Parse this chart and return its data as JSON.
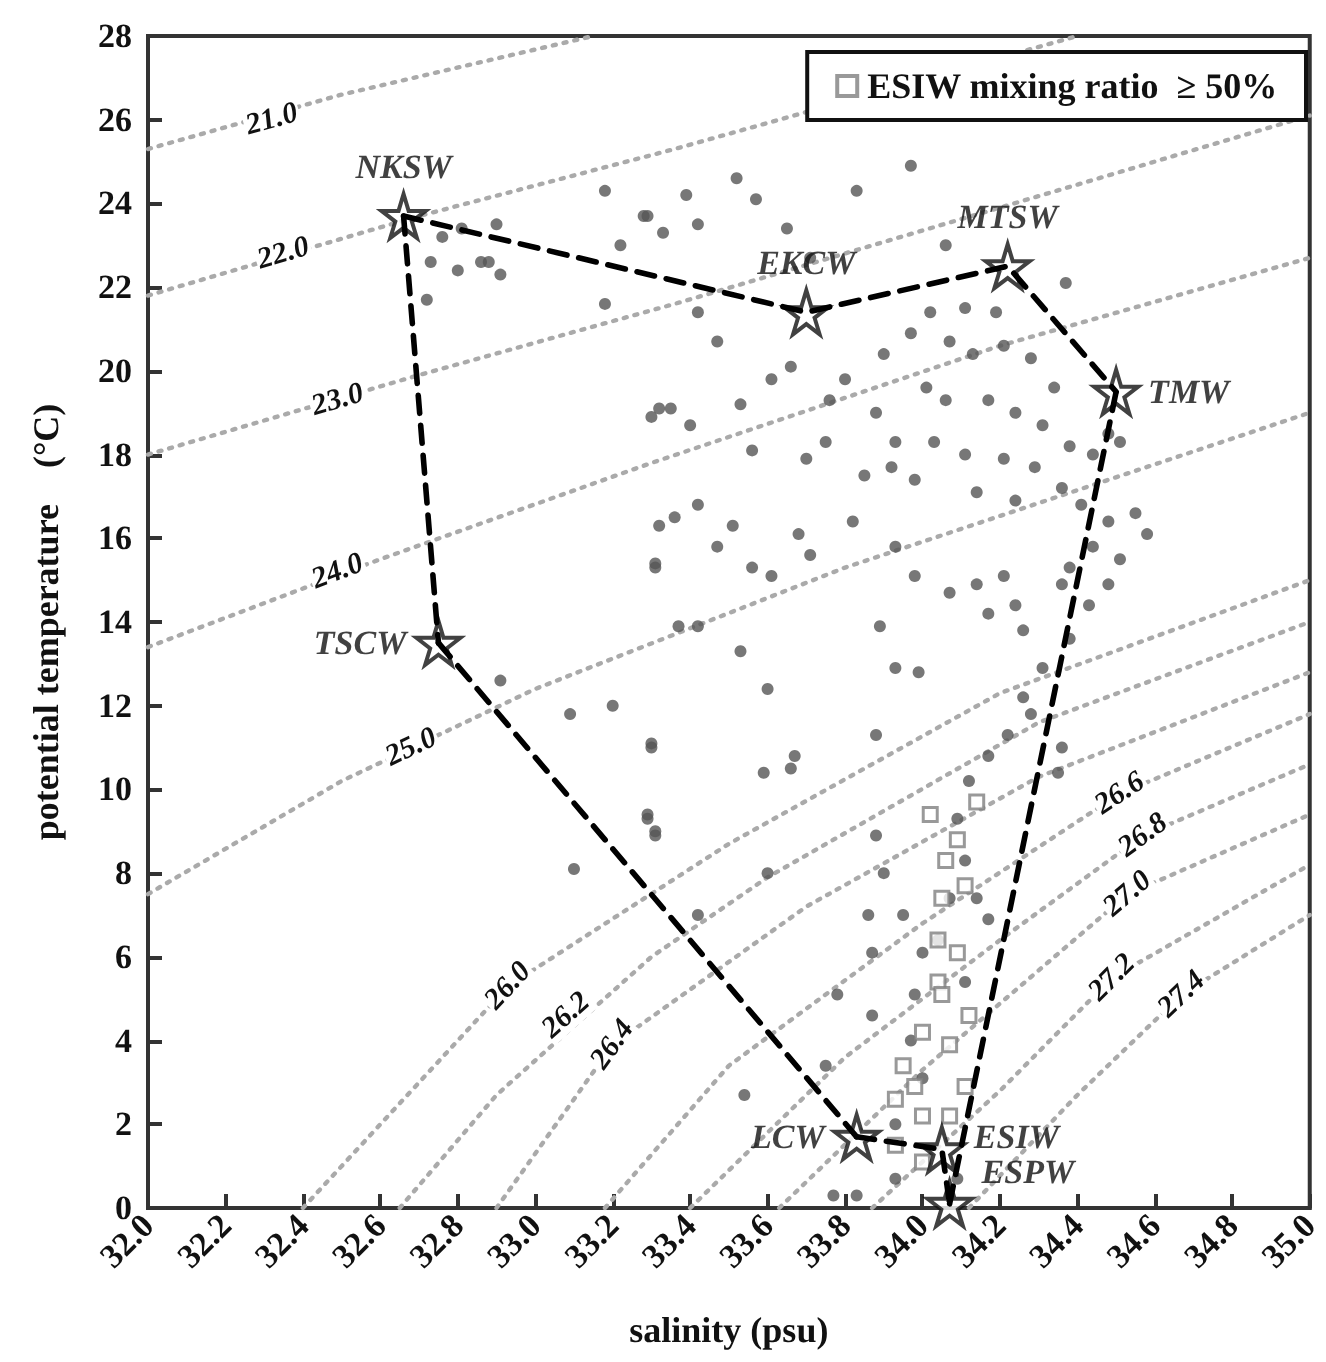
{
  "chart_data": {
    "type": "scatter",
    "xlabel": "salinity (psu)",
    "ylabel": "potential temperature    (°C)",
    "xlim": [
      32,
      35
    ],
    "ylim": [
      0,
      28
    ],
    "xticks": [
      {
        "value": 32,
        "label": "32.0"
      },
      32.2,
      32.4,
      32.6,
      32.8,
      {
        "value": 33,
        "label": "33.0"
      },
      33.2,
      33.4,
      33.6,
      33.8,
      {
        "value": 34,
        "label": "34.0"
      },
      34.2,
      34.4,
      34.6,
      34.8,
      {
        "value": 35,
        "label": "35.0"
      }
    ],
    "yticks": [
      0,
      2,
      4,
      6,
      8,
      10,
      12,
      14,
      16,
      18,
      20,
      22,
      24,
      26,
      28
    ],
    "legend": "top right",
    "series": [
      {
        "type": "line",
        "line_style": "dotted",
        "marker": "none",
        "color": "#aaaaaa",
        "x": [
          32.0,
          32.5,
          33.15
        ],
        "values": [
          25.3,
          26.6,
          28
        ]
      },
      {
        "type": "line",
        "line_style": "dotted",
        "marker": "none",
        "color": "#aaaaaa",
        "x": [
          32.0,
          32.7,
          33.36,
          34.4
        ],
        "values": [
          21.8,
          23.7,
          25.3,
          28
        ]
      },
      {
        "type": "line",
        "line_style": "dotted",
        "marker": "none",
        "color": "#aaaaaa",
        "x": [
          32.0,
          32.7,
          33.36,
          34.2,
          35.0
        ],
        "values": [
          18.0,
          19.9,
          21.6,
          23.9,
          26.1
        ]
      },
      {
        "type": "line",
        "line_style": "dotted",
        "marker": "none",
        "color": "#aaaaaa",
        "x": [
          32.0,
          32.6,
          33.3,
          34.2,
          35.0
        ],
        "values": [
          13.4,
          15.5,
          17.8,
          20.6,
          22.7
        ]
      },
      {
        "type": "line",
        "line_style": "dotted",
        "marker": "none",
        "color": "#aaaaaa",
        "x": [
          32.0,
          32.5,
          33.0,
          33.8,
          35.0
        ],
        "values": [
          7.5,
          10.2,
          12.4,
          15.3,
          19.0
        ]
      },
      {
        "type": "line",
        "line_style": "dotted",
        "marker": "none",
        "color": "#aaaaaa",
        "x": [
          32.4,
          32.93,
          33.5,
          34.2,
          35.0
        ],
        "values": [
          0,
          5.3,
          8.7,
          12.3,
          15.0
        ]
      },
      {
        "type": "line",
        "line_style": "dotted",
        "marker": "none",
        "color": "#aaaaaa",
        "x": [
          32.65,
          32.9,
          33.3,
          33.6,
          34.3,
          35.0
        ],
        "values": [
          0,
          2.7,
          6.0,
          7.9,
          11.6,
          14.0
        ]
      },
      {
        "type": "line",
        "line_style": "dotted",
        "marker": "none",
        "color": "#aaaaaa",
        "x": [
          32.9,
          33.2,
          33.7,
          34.3,
          35.0
        ],
        "values": [
          0,
          3.9,
          7.2,
          10.3,
          12.8
        ]
      },
      {
        "type": "line",
        "line_style": "dotted",
        "marker": "none",
        "color": "#aaaaaa",
        "x": [
          33.18,
          33.5,
          34.0,
          34.51,
          35.0
        ],
        "values": [
          0,
          3.4,
          6.8,
          9.9,
          11.8
        ]
      },
      {
        "type": "line",
        "line_style": "dotted",
        "marker": "none",
        "color": "#aaaaaa",
        "x": [
          33.4,
          33.8,
          34.2,
          34.57,
          35.0
        ],
        "values": [
          0,
          3.6,
          6.4,
          8.9,
          10.6
        ]
      },
      {
        "type": "line",
        "line_style": "dotted",
        "marker": "none",
        "color": "#aaaaaa",
        "x": [
          33.63,
          34.0,
          34.53,
          35.0
        ],
        "values": [
          0,
          3.3,
          7.5,
          9.4
        ]
      },
      {
        "type": "line",
        "line_style": "dotted",
        "marker": "none",
        "color": "#aaaaaa",
        "x": [
          33.87,
          34.2,
          34.49,
          35.0
        ],
        "values": [
          0,
          2.8,
          5.5,
          8.2
        ]
      },
      {
        "type": "line",
        "line_style": "dotted",
        "marker": "none",
        "color": "#aaaaaa",
        "x": [
          34.12,
          34.4,
          34.67,
          35.0
        ],
        "values": [
          0,
          2.7,
          5.1,
          7.0
        ]
      },
      {
        "marker": "circle",
        "color": "#555555",
        "x": [
          32.73,
          32.76,
          32.8,
          32.81,
          32.86,
          32.88,
          32.9,
          32.91,
          32.72,
          33.18,
          33.18,
          33.22,
          33.28,
          33.33,
          33.3,
          33.35,
          33.32,
          33.31,
          33.97,
          33.83,
          33.52,
          33.39,
          33.29,
          33.57,
          33.42,
          33.65,
          33.71,
          34.06,
          34.37,
          33.42,
          33.47,
          33.66,
          33.61,
          33.32,
          33.4,
          33.53,
          33.76,
          33.8,
          33.56,
          33.7,
          33.75,
          33.42,
          33.51,
          33.36,
          33.31,
          33.47,
          33.56,
          33.61,
          33.68,
          33.71,
          33.82,
          33.85,
          33.93,
          33.98,
          33.92,
          33.9,
          33.97,
          34.02,
          34.11,
          34.19,
          34.07,
          34.13,
          34.21,
          34.28,
          34.34,
          34.01,
          34.06,
          34.17,
          34.24,
          34.31,
          34.38,
          33.88,
          33.93,
          34.03,
          34.11,
          34.21,
          34.29,
          33.98,
          34.14,
          34.24,
          34.36,
          34.44,
          34.48,
          34.51,
          34.41,
          34.48,
          34.55,
          34.58,
          34.44,
          34.51,
          34.38,
          34.48,
          34.36,
          34.21,
          34.14,
          34.43,
          34.38,
          34.31,
          34.28,
          34.22,
          34.17,
          34.12,
          34.09,
          34.11,
          34.07,
          34.04,
          34.0,
          33.98,
          33.97,
          34.0,
          33.93,
          33.93,
          33.77,
          33.83,
          34.09,
          33.87,
          33.87,
          33.78,
          33.88,
          33.75,
          33.54,
          33.6,
          33.42,
          33.31,
          33.29,
          33.3,
          33.53,
          33.6,
          33.37,
          33.42,
          33.59,
          33.66,
          33.67,
          33.88,
          33.89,
          33.93,
          33.99,
          34.07,
          34.17,
          34.24,
          34.26,
          34.26,
          34.35,
          34.36,
          34.14,
          34.17,
          34.11,
          33.86,
          33.95,
          33.9,
          32.91,
          33.09,
          33.2,
          33.3,
          33.29,
          33.31,
          33.1
        ],
        "values": [
          22.6,
          23.2,
          22.4,
          23.4,
          22.6,
          22.6,
          23.5,
          22.3,
          21.7,
          24.3,
          21.6,
          23.0,
          23.7,
          23.3,
          18.9,
          19.1,
          16.3,
          15.4,
          24.9,
          24.3,
          24.6,
          24.2,
          23.7,
          24.1,
          23.5,
          23.4,
          22.7,
          23.0,
          22.1,
          21.4,
          20.7,
          20.1,
          19.8,
          19.1,
          18.7,
          19.2,
          19.3,
          19.8,
          18.1,
          17.9,
          18.3,
          16.8,
          16.3,
          16.5,
          15.3,
          15.8,
          15.3,
          15.1,
          16.1,
          15.6,
          16.4,
          17.5,
          15.8,
          15.1,
          17.7,
          20.4,
          20.9,
          21.4,
          21.5,
          21.4,
          20.7,
          20.4,
          20.6,
          20.3,
          19.6,
          19.6,
          19.3,
          19.3,
          19.0,
          18.7,
          18.2,
          19.0,
          18.3,
          18.3,
          18.0,
          17.9,
          17.7,
          17.4,
          17.1,
          16.9,
          17.2,
          18.0,
          18.5,
          18.3,
          16.8,
          16.4,
          16.6,
          16.1,
          15.8,
          15.5,
          15.3,
          14.9,
          14.9,
          15.1,
          14.9,
          14.4,
          13.6,
          12.9,
          11.8,
          11.3,
          10.8,
          10.2,
          9.3,
          8.3,
          7.4,
          6.4,
          6.1,
          5.1,
          4.0,
          3.1,
          2.0,
          0.7,
          0.3,
          0.3,
          0.7,
          4.6,
          6.1,
          5.1,
          8.9,
          3.4,
          2.7,
          8.0,
          7.0,
          8.9,
          9.4,
          11.1,
          13.3,
          12.4,
          13.9,
          13.9,
          10.4,
          10.5,
          10.8,
          11.3,
          13.9,
          12.9,
          12.8,
          14.7,
          14.2,
          14.4,
          13.8,
          12.2,
          10.4,
          11.0,
          7.4,
          6.9,
          5.4,
          7.0,
          7.0,
          8.0,
          12.6,
          11.8,
          12.0,
          11.0,
          9.3,
          9.0,
          8.1
        ]
      },
      {
        "marker": "square",
        "name": "ESIW mixing ratio  ≥ 50%",
        "color": "#808080",
        "x": [
          34.14,
          34.09,
          34.11,
          34.05,
          34.04,
          34.12,
          34.0,
          33.95,
          33.98,
          33.93,
          34.07,
          34.04,
          34.06,
          34.09,
          34.0,
          34.07,
          33.93,
          34.0,
          34.07,
          34.11,
          34.05,
          34.02
        ],
        "values": [
          9.7,
          8.8,
          7.7,
          7.4,
          6.4,
          4.6,
          4.2,
          3.4,
          2.9,
          2.6,
          3.9,
          5.4,
          8.3,
          6.1,
          2.2,
          2.2,
          1.5,
          1.1,
          null,
          2.9,
          5.1,
          9.4
        ]
      },
      {
        "type": "line",
        "line_style": "dashed",
        "marker": "none",
        "color": "#000000",
        "x": [
          32.66,
          33.7,
          34.22,
          34.5
        ],
        "values": [
          23.7,
          21.4,
          22.5,
          19.5
        ]
      },
      {
        "type": "line",
        "line_style": "dashed",
        "marker": "none",
        "color": "#000000",
        "x": [
          34.07,
          34.5
        ],
        "values": [
          0.1,
          19.5
        ]
      },
      {
        "type": "line",
        "line_style": "dashed",
        "marker": "none",
        "color": "#000000",
        "x": [
          33.83,
          34.05,
          34.07
        ],
        "values": [
          1.7,
          1.4,
          0.1
        ]
      },
      {
        "type": "line",
        "line_style": "dashed",
        "marker": "none",
        "color": "#000000",
        "x": [
          32.75,
          33.83
        ],
        "values": [
          13.5,
          1.7
        ]
      },
      {
        "type": "line",
        "line_style": "dashed",
        "marker": "none",
        "color": "#000000",
        "x": [
          32.66,
          32.75
        ],
        "values": [
          23.7,
          13.5
        ]
      },
      {
        "marker": "star",
        "name": "NKSW",
        "color": "#111111",
        "x": [
          32.66
        ],
        "values": [
          23.7
        ]
      },
      {
        "marker": "star",
        "name": "EKCW",
        "color": "#111111",
        "x": [
          33.7
        ],
        "values": [
          21.4
        ]
      },
      {
        "marker": "star",
        "name": "MTSW",
        "color": "#111111",
        "x": [
          34.22
        ],
        "values": [
          22.5
        ]
      },
      {
        "marker": "star",
        "name": "TMW",
        "color": "#111111",
        "x": [
          34.5
        ],
        "values": [
          19.5
        ]
      },
      {
        "marker": "star",
        "name": "TSCW",
        "color": "#111111",
        "x": [
          32.75
        ],
        "values": [
          13.5
        ]
      },
      {
        "marker": "star",
        "name": "LCW",
        "color": "#111111",
        "x": [
          33.83
        ],
        "values": [
          1.7
        ]
      },
      {
        "marker": "star",
        "name": "ESIW",
        "color": "#111111",
        "x": [
          34.05
        ],
        "values": [
          1.4
        ]
      },
      {
        "marker": "star",
        "name": "ESPW",
        "color": "#111111",
        "x": [
          34.07
        ],
        "values": [
          0.1
        ]
      }
    ],
    "annotations": [
      {
        "text": "21.0",
        "x": 32.32,
        "y": 26.0
      },
      {
        "text": "22.0",
        "x": 32.35,
        "y": 22.8
      },
      {
        "text": "23.0",
        "x": 32.49,
        "y": 19.3
      },
      {
        "text": "24.0",
        "x": 32.49,
        "y": 15.2
      },
      {
        "text": "25.0",
        "x": 32.68,
        "y": 11.0
      },
      {
        "text": "26.0",
        "x": 32.93,
        "y": 5.3
      },
      {
        "text": "26.2",
        "x": 33.08,
        "y": 4.6
      },
      {
        "text": "26.4",
        "x": 33.2,
        "y": 3.9
      },
      {
        "text": "26.6",
        "x": 34.51,
        "y": 9.9
      },
      {
        "text": "26.8",
        "x": 34.57,
        "y": 8.9
      },
      {
        "text": "27.0",
        "x": 34.53,
        "y": 7.5
      },
      {
        "text": "27.2",
        "x": 34.49,
        "y": 5.5
      },
      {
        "text": "27.4",
        "x": 34.67,
        "y": 5.1
      }
    ]
  }
}
